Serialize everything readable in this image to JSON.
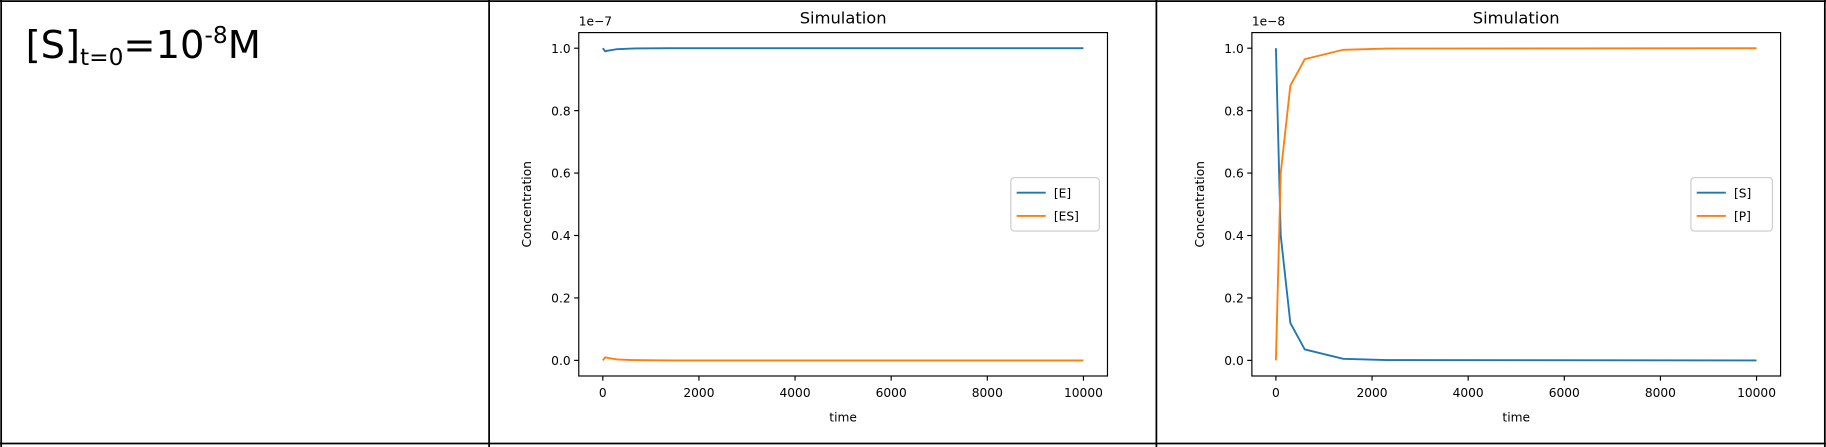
{
  "label": {
    "main": "[S]",
    "subscript": "t=0",
    "equals": "=10",
    "superscript": "-8",
    "unit": "M"
  },
  "chart_data": [
    {
      "type": "line",
      "title": "Simulation",
      "xlabel": "time",
      "ylabel": "Concentration",
      "y_offset_label": "1e−7",
      "x": [
        0,
        50,
        100,
        300,
        600,
        1400,
        10000
      ],
      "series": [
        {
          "name": "[E]",
          "color": "#1f77b4",
          "values": [
            1.0,
            0.99,
            0.992,
            0.997,
            0.999,
            1.0,
            1.0
          ]
        },
        {
          "name": "[ES]",
          "color": "#ff7f0e",
          "values": [
            0,
            0.01,
            0.008,
            0.003,
            0.001,
            0,
            0
          ]
        }
      ],
      "xlim": [
        -500,
        10500
      ],
      "xticks": [
        0,
        2000,
        4000,
        6000,
        8000,
        10000
      ],
      "ylim": [
        -0.05,
        1.05
      ],
      "yticks": [
        {
          "value": 0,
          "label": "0.0"
        },
        {
          "value": 0.2,
          "label": "0.2"
        },
        {
          "value": 0.4,
          "label": "0.4"
        },
        {
          "value": 0.6,
          "label": "0.6"
        },
        {
          "value": 0.8,
          "label": "0.8"
        },
        {
          "value": 1,
          "label": "1.0"
        }
      ],
      "legend": "center right"
    },
    {
      "type": "line",
      "title": "Simulation",
      "xlabel": "time",
      "ylabel": "Concentration",
      "y_offset_label": "1e−8",
      "x": [
        0,
        100,
        300,
        600,
        1400,
        2300,
        10000
      ],
      "series": [
        {
          "name": "[S]",
          "color": "#1f77b4",
          "values": [
            1.0,
            0.4,
            0.12,
            0.035,
            0.005,
            0.001,
            0
          ]
        },
        {
          "name": "[P]",
          "color": "#ff7f0e",
          "values": [
            0,
            0.6,
            0.88,
            0.965,
            0.995,
            0.999,
            1.0
          ]
        }
      ],
      "xlim": [
        -500,
        10500
      ],
      "xticks": [
        0,
        2000,
        4000,
        6000,
        8000,
        10000
      ],
      "ylim": [
        -0.05,
        1.05
      ],
      "yticks": [
        {
          "value": 0,
          "label": "0.0"
        },
        {
          "value": 0.2,
          "label": "0.2"
        },
        {
          "value": 0.4,
          "label": "0.4"
        },
        {
          "value": 0.6,
          "label": "0.6"
        },
        {
          "value": 0.8,
          "label": "0.8"
        },
        {
          "value": 1,
          "label": "1.0"
        }
      ],
      "legend": "center right"
    }
  ]
}
